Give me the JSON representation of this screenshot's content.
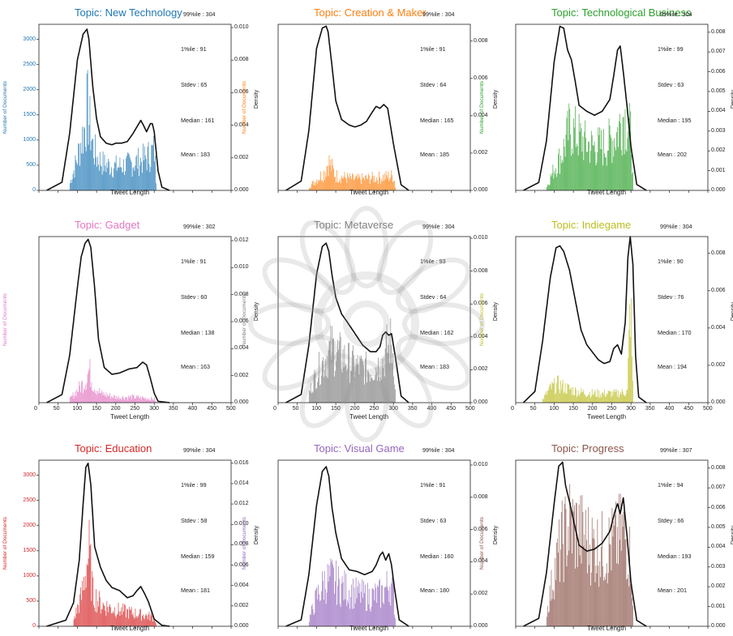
{
  "colors": {
    "tab_blue": "#1f77b4",
    "tab_orange": "#ff7f0e",
    "tab_green": "#2ca02c",
    "tab_pink": "#e377c2",
    "tab_gray": "#7f7f7f",
    "tab_olive": "#bcbd22",
    "tab_red": "#d62728",
    "tab_purple": "#9467bd",
    "tab_brown": "#8c564b",
    "kde": "#111111"
  },
  "chart_data": [
    {
      "type": "histogram",
      "title": "Topic: New Technology",
      "color": "#1f77b4",
      "xlabel": "Tweet Length",
      "ylabel": "Number of Documents",
      "y2label": "Density",
      "xticks": [],
      "yticks": [
        "0",
        "500",
        "1000",
        "1500",
        "2000",
        "2500",
        "3000"
      ],
      "ylim": [
        0,
        3300
      ],
      "y2ticks": [
        "0.000",
        "0.002",
        "0.004",
        "0.006",
        "0.008",
        "0.010"
      ],
      "y2lim": [
        0,
        0.0102
      ],
      "stats": {
        "p99": "99%ile  : 304",
        "p1": "1%ile   : 91",
        "stdev": "Stdev   : 65",
        "median": "Median : 161",
        "mean": "Mean    : 183"
      },
      "density_curve": {
        "x": [
          20,
          60,
          80,
          100,
          115,
          125,
          130,
          140,
          150,
          160,
          175,
          190,
          200,
          215,
          230,
          245,
          255,
          265,
          272,
          280,
          290,
          295,
          300,
          310,
          320,
          340
        ],
        "y": [
          0,
          0.0005,
          0.0035,
          0.008,
          0.0096,
          0.0099,
          0.0093,
          0.0064,
          0.0044,
          0.0033,
          0.0029,
          0.0028,
          0.0029,
          0.0029,
          0.003,
          0.0035,
          0.0039,
          0.0043,
          0.004,
          0.0036,
          0.0041,
          0.0041,
          0.0036,
          0.0012,
          0.0002,
          0
        ]
      },
      "histogram_envelope": {
        "x": [
          80,
          100,
          110,
          120,
          125,
          130,
          140,
          150,
          170,
          200,
          230,
          260,
          280,
          300,
          305
        ],
        "y": [
          200,
          900,
          1400,
          1800,
          2300,
          1900,
          1200,
          900,
          700,
          650,
          700,
          800,
          900,
          1100,
          100
        ]
      }
    },
    {
      "type": "histogram",
      "title": "Topic: Creation & Maker",
      "color": "#ff7f0e",
      "xlabel": "Tweet Length",
      "ylabel": "Number of Documents",
      "y2label": "Density",
      "xticks": [],
      "yticks": [],
      "ylim": [
        0,
        3300
      ],
      "y2ticks": [
        "0.000",
        "0.002",
        "0.004",
        "0.006",
        "0.008"
      ],
      "y2lim": [
        0,
        0.0089
      ],
      "stats": {
        "p99": "99%ile  : 304",
        "p1": "1%ile   : 91",
        "stdev": "Stdev   : 64",
        "median": "Median : 165",
        "mean": "Mean    : 185"
      },
      "density_curve": {
        "x": [
          20,
          60,
          80,
          100,
          115,
          125,
          130,
          140,
          150,
          165,
          185,
          200,
          215,
          230,
          245,
          255,
          265,
          275,
          285,
          300,
          320,
          340
        ],
        "y": [
          0,
          0.0005,
          0.0032,
          0.0076,
          0.0087,
          0.0088,
          0.0085,
          0.0067,
          0.0048,
          0.0038,
          0.0035,
          0.0034,
          0.0035,
          0.0037,
          0.0042,
          0.0045,
          0.0044,
          0.0046,
          0.0044,
          0.0025,
          0.0003,
          0
        ]
      },
      "histogram_envelope": {
        "x": [
          80,
          100,
          120,
          130,
          150,
          200,
          260,
          300,
          305
        ],
        "y": [
          100,
          300,
          500,
          800,
          400,
          300,
          350,
          400,
          50
        ]
      }
    },
    {
      "type": "histogram",
      "title": "Topic: Technological Business",
      "color": "#2ca02c",
      "xlabel": "Tweet Length",
      "ylabel": "Number of Documents",
      "y2label": "Density",
      "xticks": [],
      "yticks": [],
      "ylim": [
        0,
        3300
      ],
      "y2ticks": [
        "0.000",
        "0.001",
        "0.002",
        "0.003",
        "0.004",
        "0.005",
        "0.006",
        "0.007",
        "0.008"
      ],
      "y2lim": [
        0,
        0.0084
      ],
      "stats": {
        "p99": "99%ile  : 304",
        "p1": "1%ile   : 99",
        "stdev": "Stdev   : 63",
        "median": "Median : 195",
        "mean": "Mean    : 202"
      },
      "density_curve": {
        "x": [
          20,
          60,
          80,
          100,
          115,
          125,
          135,
          145,
          155,
          165,
          185,
          205,
          225,
          245,
          255,
          265,
          272,
          280,
          290,
          300,
          315,
          340
        ],
        "y": [
          0,
          0.0004,
          0.0025,
          0.0065,
          0.0083,
          0.0082,
          0.0071,
          0.0066,
          0.0055,
          0.0043,
          0.004,
          0.0038,
          0.004,
          0.0046,
          0.0058,
          0.0071,
          0.0073,
          0.006,
          0.0042,
          0.0022,
          0.0003,
          0
        ]
      },
      "histogram_envelope": {
        "x": [
          80,
          100,
          120,
          140,
          160,
          180,
          200,
          230,
          260,
          280,
          300,
          305
        ],
        "y": [
          100,
          600,
          1000,
          1700,
          1500,
          1300,
          1200,
          1200,
          1500,
          2100,
          1500,
          100
        ]
      }
    },
    {
      "type": "histogram",
      "title": "Topic: Gadget",
      "color": "#e377c2",
      "xlabel": "Tweet Length",
      "ylabel": "Number of Documents",
      "y2label": "Density",
      "xticks": [
        "0",
        "50",
        "100",
        "150",
        "200",
        "250",
        "300",
        "350",
        "400",
        "450",
        "500"
      ],
      "yticks": [],
      "ylim": [
        0,
        3300
      ],
      "y2ticks": [
        "0.000",
        "0.002",
        "0.004",
        "0.006",
        "0.008",
        "0.010",
        "0.012"
      ],
      "y2lim": [
        0,
        0.0123
      ],
      "stats": {
        "p99": "99%ile  : 302",
        "p1": "1%ile   : 91",
        "stdev": "Stdev   : 60",
        "median": "Median : 138",
        "mean": "Mean    : 163"
      },
      "density_curve": {
        "x": [
          20,
          60,
          80,
          100,
          110,
          120,
          128,
          135,
          145,
          155,
          170,
          190,
          210,
          235,
          255,
          270,
          280,
          290,
          300,
          310,
          340
        ],
        "y": [
          0,
          0.0006,
          0.0035,
          0.0085,
          0.0108,
          0.0118,
          0.0121,
          0.0115,
          0.0085,
          0.0047,
          0.0026,
          0.0021,
          0.0022,
          0.0025,
          0.0026,
          0.003,
          0.0028,
          0.0018,
          0.0007,
          0.0001,
          0
        ]
      },
      "histogram_envelope": {
        "x": [
          80,
          100,
          120,
          130,
          140,
          160,
          200,
          250,
          300,
          305
        ],
        "y": [
          100,
          350,
          600,
          900,
          500,
          250,
          150,
          150,
          100,
          20
        ]
      }
    },
    {
      "type": "histogram",
      "title": "Topic: Metaverse",
      "color": "#7f7f7f",
      "xlabel": "Tweet Length",
      "ylabel": "Number of Documents",
      "y2label": "Density",
      "xticks": [
        "0",
        "50",
        "100",
        "150",
        "200",
        "250",
        "300",
        "350",
        "400",
        "450",
        "500"
      ],
      "yticks": [],
      "ylim": [
        0,
        3300
      ],
      "y2ticks": [
        "0.000",
        "0.002",
        "0.004",
        "0.006",
        "0.008",
        "0.010"
      ],
      "y2lim": [
        0,
        0.0101
      ],
      "stats": {
        "p99": "99%ile  : 304",
        "p1": "1%ile   : 93",
        "stdev": "Stdev   : 64",
        "median": "Median : 162",
        "mean": "Mean    : 183"
      },
      "density_curve": {
        "x": [
          20,
          60,
          80,
          100,
          115,
          125,
          132,
          140,
          150,
          165,
          180,
          200,
          220,
          240,
          255,
          265,
          272,
          280,
          288,
          295,
          305,
          320,
          340
        ],
        "y": [
          0,
          0.0005,
          0.0035,
          0.0078,
          0.0095,
          0.0097,
          0.0092,
          0.0078,
          0.0064,
          0.0054,
          0.0049,
          0.0042,
          0.0035,
          0.0031,
          0.0031,
          0.0034,
          0.0041,
          0.0043,
          0.0041,
          0.0042,
          0.0028,
          0.0004,
          0
        ]
      },
      "histogram_envelope": {
        "x": [
          80,
          100,
          120,
          140,
          160,
          200,
          240,
          270,
          290,
          300,
          305
        ],
        "y": [
          300,
          800,
          1200,
          1500,
          1300,
          1000,
          900,
          1100,
          1700,
          1300,
          80
        ]
      }
    },
    {
      "type": "histogram",
      "title": "Topic: Indiegame",
      "color": "#bcbd22",
      "xlabel": "Tweet Length",
      "ylabel": "Number of Documents",
      "y2label": "Density",
      "xticks": [
        "0",
        "50",
        "100",
        "150",
        "200",
        "250",
        "300",
        "350",
        "400",
        "450",
        "500"
      ],
      "yticks": [],
      "ylim": [
        0,
        3300
      ],
      "y2ticks": [
        "0.000",
        "0.002",
        "0.004",
        "0.006",
        "0.008"
      ],
      "y2lim": [
        0,
        0.0089
      ],
      "stats": {
        "p99": "99%ile  : 304",
        "p1": "1%ile   : 90",
        "stdev": "Stdev   : 76",
        "median": "Median : 170",
        "mean": "Mean    : 194"
      },
      "density_curve": {
        "x": [
          20,
          50,
          70,
          90,
          105,
          115,
          125,
          140,
          155,
          170,
          185,
          200,
          215,
          230,
          245,
          255,
          265,
          275,
          285,
          292,
          298,
          305,
          312,
          320,
          340
        ],
        "y": [
          0,
          0.0006,
          0.0033,
          0.0067,
          0.0083,
          0.0084,
          0.0081,
          0.0071,
          0.0055,
          0.0039,
          0.0031,
          0.0027,
          0.0023,
          0.0021,
          0.0022,
          0.0029,
          0.0031,
          0.0026,
          0.0043,
          0.0078,
          0.0089,
          0.0074,
          0.0025,
          0.0003,
          0
        ]
      },
      "histogram_envelope": {
        "x": [
          70,
          90,
          110,
          130,
          160,
          200,
          260,
          290,
          298,
          305
        ],
        "y": [
          100,
          400,
          500,
          400,
          300,
          250,
          250,
          300,
          2900,
          50
        ]
      }
    },
    {
      "type": "histogram",
      "title": "Topic: Education",
      "color": "#d62728",
      "xlabel": "Tweet Length",
      "ylabel": "Number of Documents",
      "y2label": "Density",
      "xticks": [],
      "yticks": [
        "0",
        "500",
        "1000",
        "1500",
        "2000",
        "2500",
        "3000"
      ],
      "ylim": [
        0,
        3300
      ],
      "y2ticks": [
        "0.000",
        "0.002",
        "0.004",
        "0.006",
        "0.008",
        "0.010",
        "0.012",
        "0.014",
        "0.016"
      ],
      "y2lim": [
        0,
        0.0163
      ],
      "stats": {
        "p99": "99%ile  : 304",
        "p1": "1%ile   : 99",
        "stdev": "Stdev   : 58",
        "median": "Median : 159",
        "mean": "Mean    : 181"
      },
      "density_curve": {
        "x": [
          20,
          70,
          90,
          105,
          115,
          122,
          128,
          135,
          145,
          160,
          175,
          190,
          210,
          230,
          245,
          255,
          265,
          275,
          285,
          300,
          320,
          340
        ],
        "y": [
          0,
          0.0006,
          0.0023,
          0.0065,
          0.012,
          0.0156,
          0.016,
          0.0139,
          0.0078,
          0.0058,
          0.0045,
          0.0038,
          0.0035,
          0.0028,
          0.003,
          0.0035,
          0.0039,
          0.0032,
          0.0024,
          0.0007,
          0.0001,
          0
        ]
      },
      "histogram_envelope": {
        "x": [
          90,
          110,
          125,
          130,
          140,
          160,
          200,
          250,
          300,
          305
        ],
        "y": [
          200,
          800,
          1800,
          2000,
          900,
          600,
          450,
          350,
          250,
          20
        ]
      }
    },
    {
      "type": "histogram",
      "title": "Topic: Visual Game",
      "color": "#9467bd",
      "xlabel": "Tweet Length",
      "ylabel": "Number of Documents",
      "y2label": "Density",
      "xticks": [],
      "yticks": [],
      "ylim": [
        0,
        3300
      ],
      "y2ticks": [
        "0.000",
        "0.002",
        "0.004",
        "0.006",
        "0.008",
        "0.010"
      ],
      "y2lim": [
        0,
        0.0103
      ],
      "stats": {
        "p99": "99%ile  : 304",
        "p1": "1%ile   : 91",
        "stdev": "Stdev   : 63",
        "median": "Median : 160",
        "mean": "Mean    : 180"
      },
      "density_curve": {
        "x": [
          20,
          60,
          80,
          100,
          115,
          125,
          132,
          140,
          150,
          165,
          185,
          205,
          225,
          245,
          255,
          265,
          272,
          280,
          288,
          295,
          302,
          315,
          340
        ],
        "y": [
          0,
          0.0004,
          0.0032,
          0.0075,
          0.0096,
          0.0099,
          0.0093,
          0.0074,
          0.0058,
          0.0042,
          0.0035,
          0.0034,
          0.0032,
          0.0034,
          0.0038,
          0.0044,
          0.0046,
          0.0041,
          0.0045,
          0.0038,
          0.0025,
          0.0004,
          0
        ]
      },
      "histogram_envelope": {
        "x": [
          80,
          100,
          120,
          140,
          160,
          200,
          240,
          270,
          290,
          300,
          305
        ],
        "y": [
          200,
          800,
          1200,
          1300,
          1100,
          900,
          800,
          900,
          1200,
          900,
          60
        ]
      }
    },
    {
      "type": "histogram",
      "title": "Topic: Progress",
      "color": "#8c564b",
      "xlabel": "Tweet Length",
      "ylabel": "Number of Documents",
      "y2label": "Density",
      "xticks": [],
      "yticks": [],
      "ylim": [
        0,
        3300
      ],
      "y2ticks": [
        "0.000",
        "0.001",
        "0.002",
        "0.003",
        "0.004",
        "0.005",
        "0.006",
        "0.007",
        "0.008"
      ],
      "y2lim": [
        0,
        0.0084
      ],
      "stats": {
        "p99": "99%ile  : 307",
        "p1": "1%ile   : 94",
        "stdev": "Stdey   : 66",
        "median": "Median : 193",
        "mean": "Mean    : 201"
      },
      "density_curve": {
        "x": [
          20,
          60,
          80,
          100,
          112,
          122,
          130,
          140,
          150,
          165,
          185,
          205,
          225,
          245,
          258,
          265,
          272,
          280,
          290,
          300,
          315,
          340
        ],
        "y": [
          0,
          0.0004,
          0.0027,
          0.0062,
          0.0081,
          0.0083,
          0.0071,
          0.0063,
          0.0054,
          0.0041,
          0.0038,
          0.0039,
          0.0042,
          0.0048,
          0.0058,
          0.0062,
          0.0057,
          0.0065,
          0.0045,
          0.0022,
          0.0003,
          0
        ]
      },
      "histogram_envelope": {
        "x": [
          80,
          100,
          120,
          140,
          160,
          180,
          200,
          230,
          260,
          280,
          300,
          305
        ],
        "y": [
          400,
          1500,
          2300,
          2800,
          2600,
          2400,
          2200,
          2100,
          2300,
          2600,
          1800,
          100
        ]
      }
    }
  ]
}
